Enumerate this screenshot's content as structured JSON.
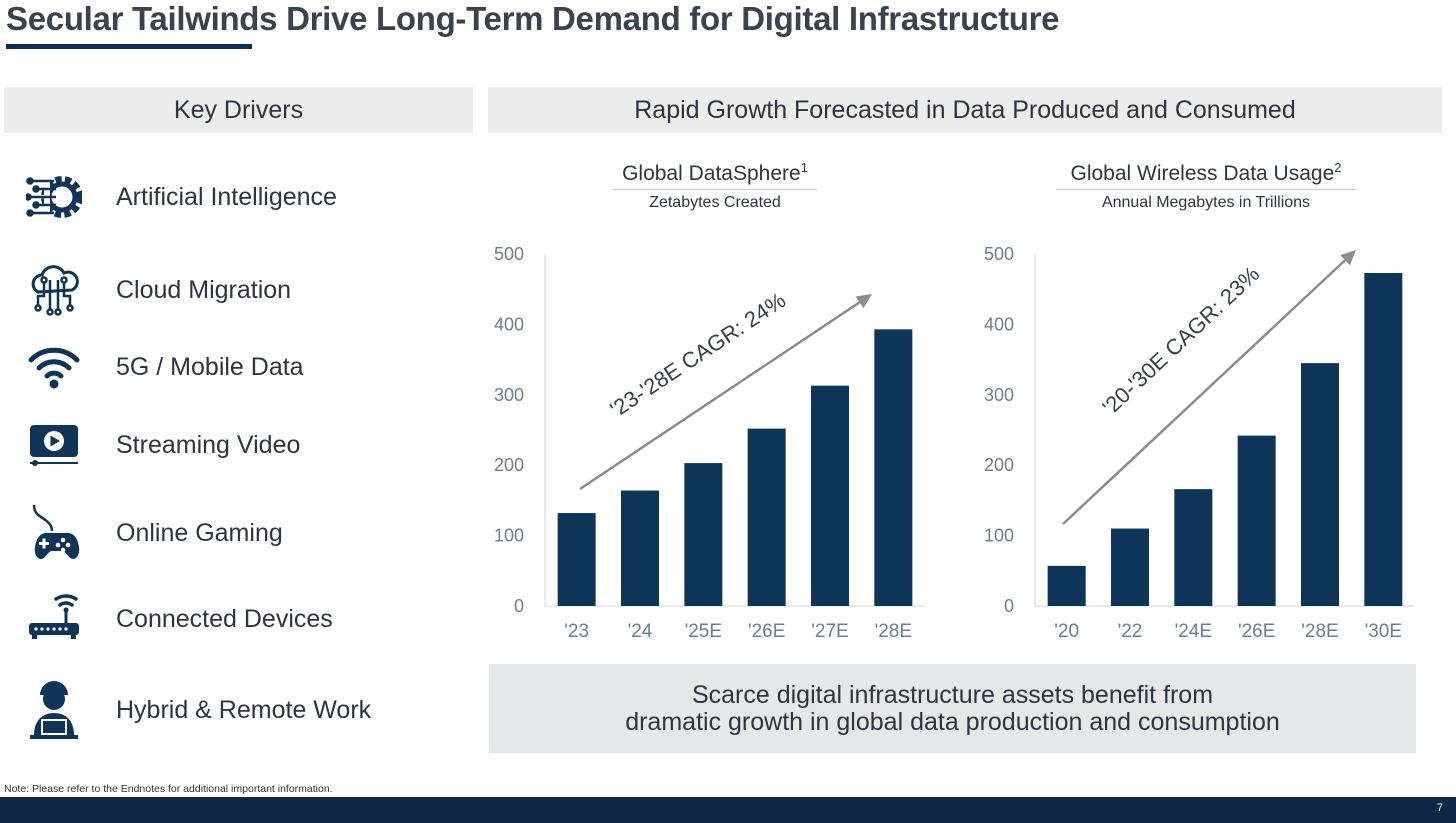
{
  "title": "Secular Tailwinds Drive Long-Term Demand for Digital Infrastructure",
  "left_panel": {
    "header": "Key Drivers",
    "drivers": [
      {
        "label": "Artificial Intelligence",
        "icon": "ai-gear-circuit-icon"
      },
      {
        "label": "Cloud Migration",
        "icon": "cloud-circuit-icon"
      },
      {
        "label": "5G / Mobile Data",
        "icon": "wifi-signal-icon"
      },
      {
        "label": "Streaming Video",
        "icon": "video-play-icon"
      },
      {
        "label": "Online Gaming",
        "icon": "game-controller-icon"
      },
      {
        "label": "Connected Devices",
        "icon": "router-icon"
      },
      {
        "label": "Hybrid & Remote Work",
        "icon": "remote-worker-icon"
      }
    ]
  },
  "right_panel": {
    "header": "Rapid Growth Forecasted in Data Produced and Consumed"
  },
  "colors": {
    "bar": "#0e3558",
    "arrow": "#8c8c8c",
    "axis_text": "#6f7d8c",
    "footer": "#0f2747"
  },
  "chart_data": [
    {
      "type": "bar",
      "title": "Global DataSphere",
      "title_sup": "1",
      "subtitle": "Zetabytes Created",
      "categories": [
        "'23",
        "'24",
        "'25E",
        "'26E",
        "'27E",
        "'28E"
      ],
      "values": [
        132,
        164,
        203,
        252,
        313,
        393
      ],
      "ylim": [
        0,
        500
      ],
      "yticks": [
        0,
        100,
        200,
        300,
        400,
        500
      ],
      "annotation": "'23-'28E CAGR: 24%"
    },
    {
      "type": "bar",
      "title": "Global Wireless Data Usage",
      "title_sup": "2",
      "subtitle": "Annual Megabytes in Trillions",
      "categories": [
        "'20",
        "'22",
        "'24E",
        "'26E",
        "'28E",
        "'30E"
      ],
      "values": [
        57,
        110,
        166,
        242,
        345,
        473
      ],
      "ylim": [
        0,
        500
      ],
      "yticks": [
        0,
        100,
        200,
        300,
        400,
        500
      ],
      "annotation": "'20-'30E CAGR: 23%"
    }
  ],
  "callout": {
    "line1": "Scarce digital infrastructure assets benefit from",
    "line2": "dramatic growth in global data production and consumption"
  },
  "note": "Note: Please refer to the Endnotes for additional important information.",
  "page_number": "7"
}
